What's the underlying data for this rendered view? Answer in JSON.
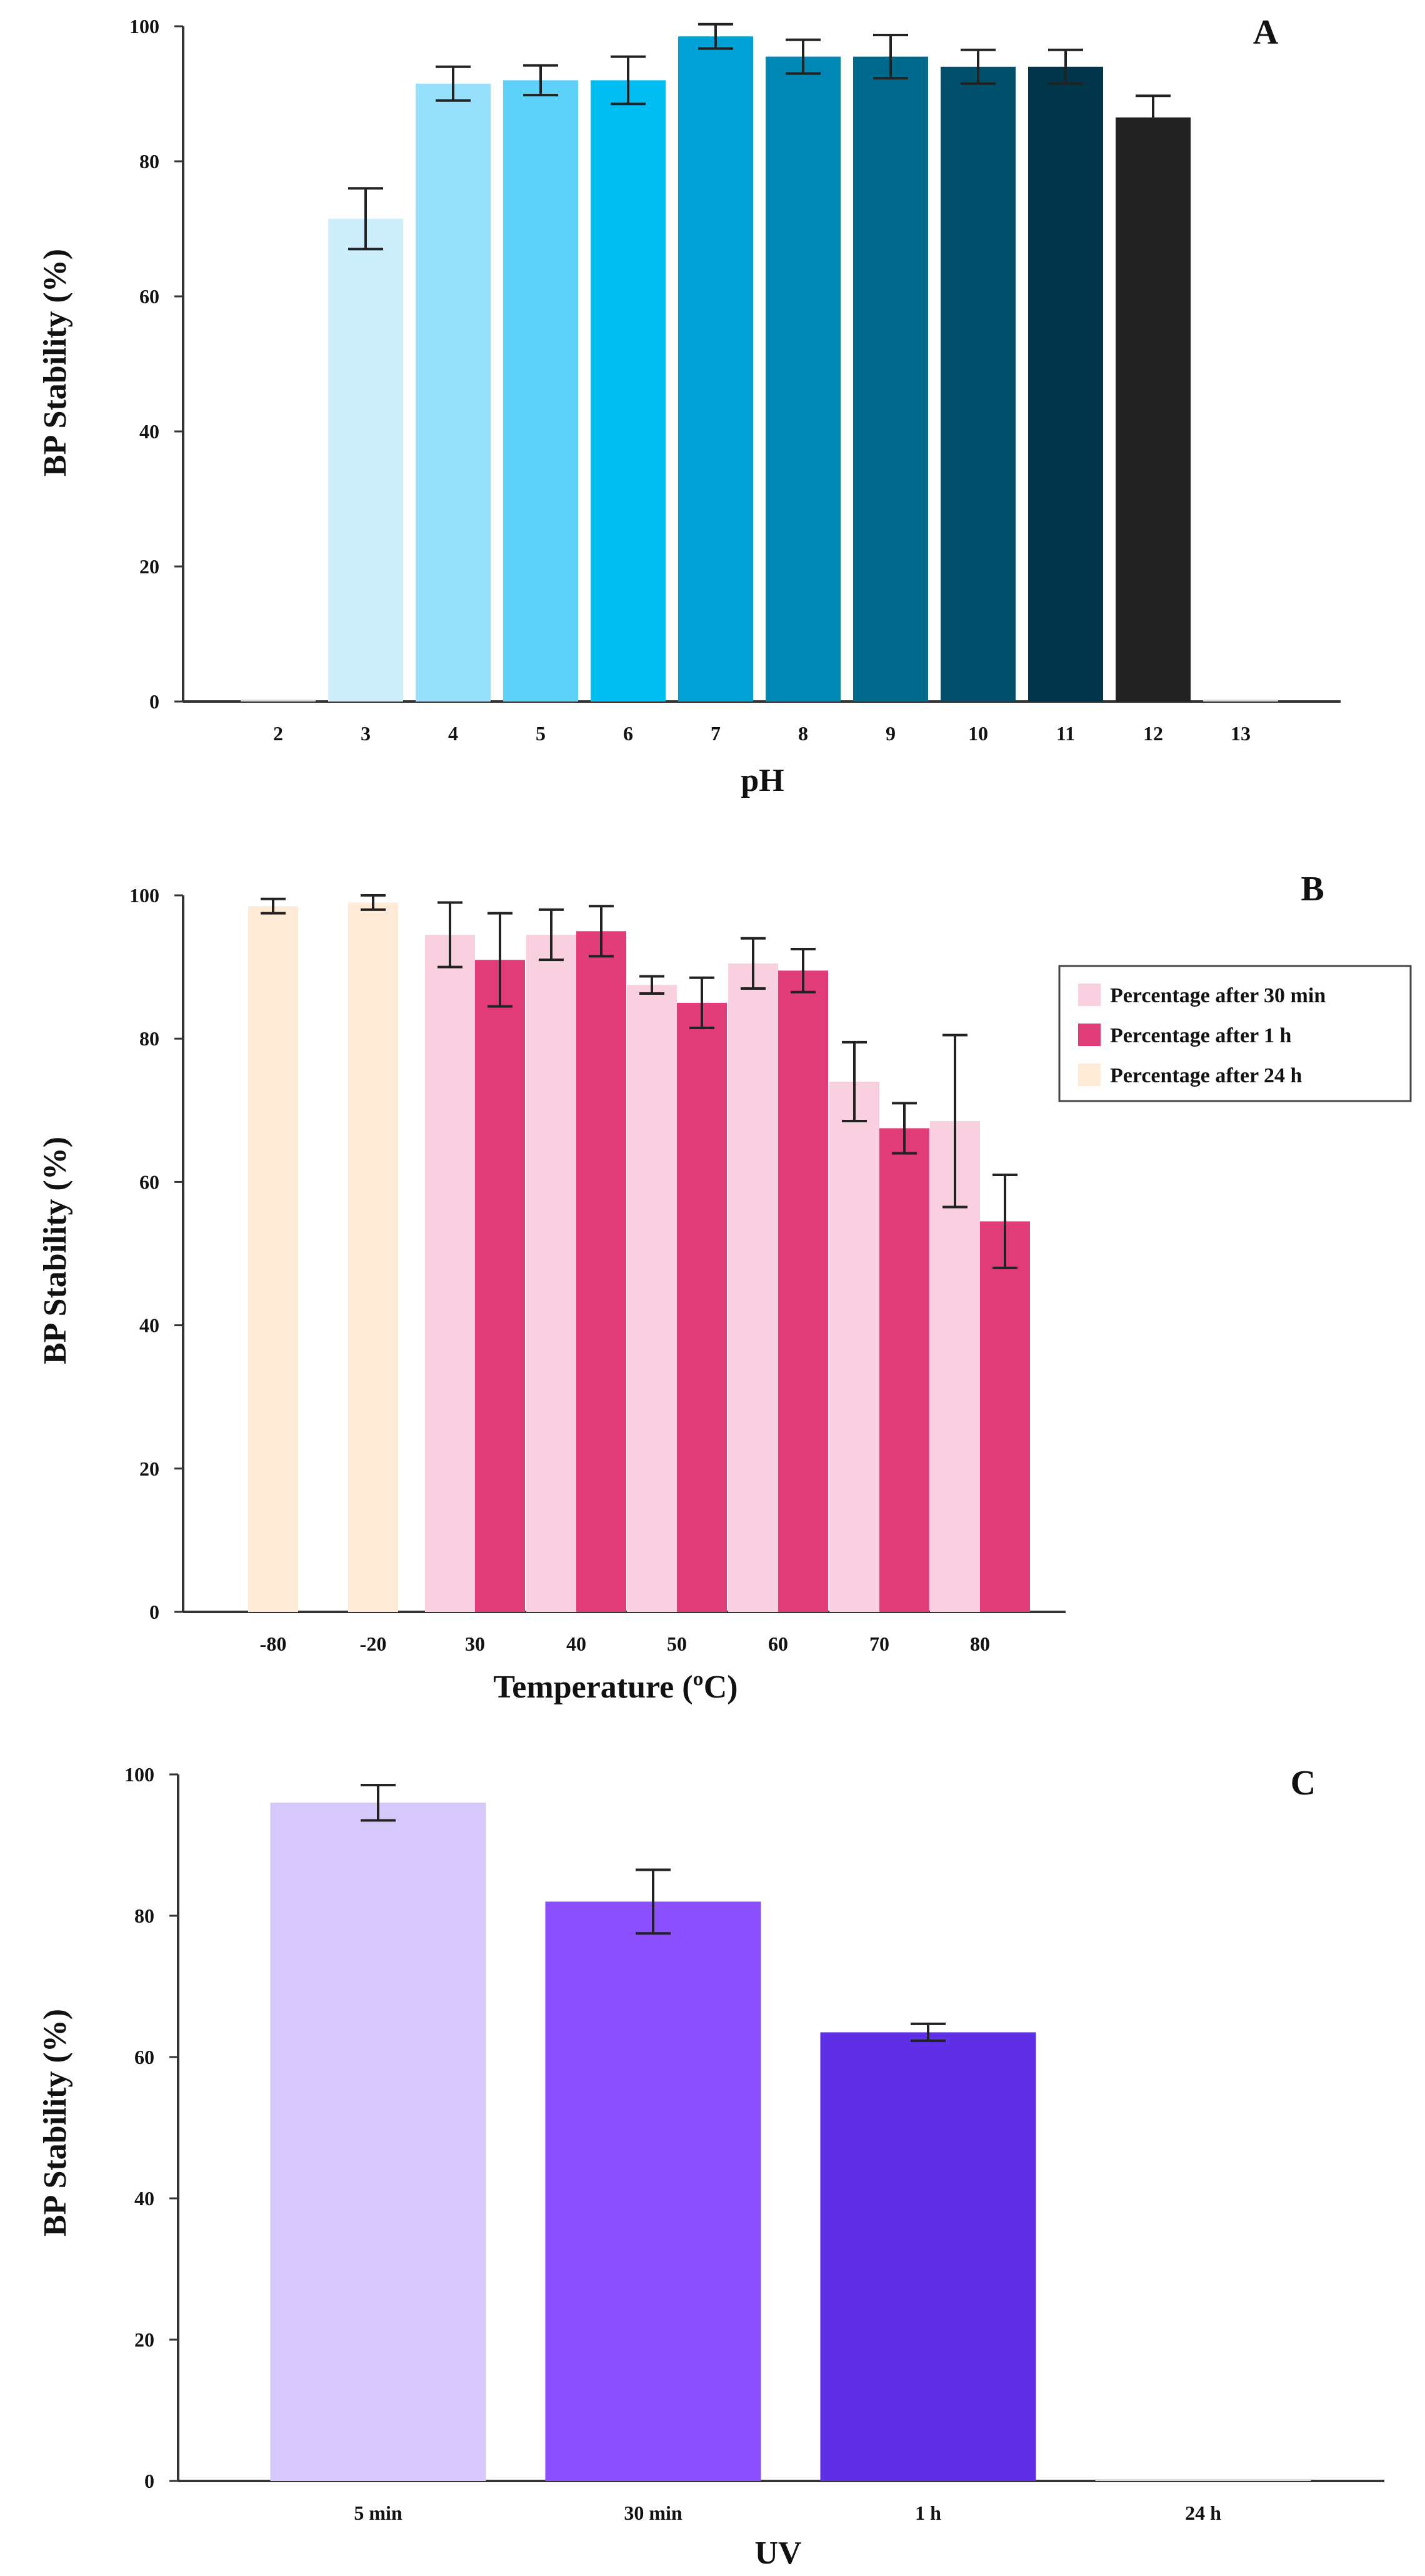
{
  "chart_data": [
    {
      "panel": "A",
      "type": "bar",
      "xlabel": "pH",
      "ylabel": "BP Stability (%)",
      "ylim": [
        0,
        100
      ],
      "yticks": [
        "0",
        "20",
        "40",
        "60",
        "80",
        "100"
      ],
      "categories": [
        "2",
        "3",
        "4",
        "5",
        "6",
        "7",
        "8",
        "9",
        "10",
        "11",
        "12",
        "13"
      ],
      "values": [
        0,
        71.5,
        91.5,
        92,
        92,
        98.5,
        95.5,
        95.5,
        94,
        94,
        86.5,
        0
      ],
      "errors": [
        0,
        4.5,
        2.5,
        2.2,
        3.5,
        1.8,
        2.5,
        3.2,
        2.5,
        2.5,
        3.2,
        0
      ],
      "colors": [
        "#e8f4fb",
        "#cdeefb",
        "#97e0fb",
        "#5dd1f8",
        "#00bdf2",
        "#00a1d6",
        "#0086b3",
        "#006a8d",
        "#004f6b",
        "#003549",
        "#222222",
        "#e8f4fb"
      ]
    },
    {
      "panel": "B",
      "type": "bar",
      "xlabel": "Temperature (ºC)",
      "ylabel": "BP Stability (%)",
      "ylim": [
        0,
        100
      ],
      "yticks": [
        "0",
        "20",
        "40",
        "60",
        "80",
        "100"
      ],
      "categories": [
        "-80",
        "-20",
        "30",
        "40",
        "50",
        "60",
        "70",
        "80"
      ],
      "series": [
        {
          "name": "Percentage after 30 min",
          "color": "#f8d0df",
          "values": [
            null,
            null,
            94.5,
            94.5,
            87.5,
            90.5,
            74,
            68.5
          ],
          "errors": [
            null,
            null,
            4.5,
            3.5,
            1.2,
            3.5,
            5.5,
            12
          ]
        },
        {
          "name": "Percentage after 1 h",
          "color": "#e23c78",
          "values": [
            null,
            null,
            91,
            95,
            85,
            89.5,
            67.5,
            54.5
          ],
          "errors": [
            null,
            null,
            6.5,
            3.5,
            3.5,
            3,
            3.5,
            6.5
          ]
        },
        {
          "name": "Percentage after 24 h",
          "color": "#feead6",
          "values": [
            98.5,
            99,
            null,
            null,
            null,
            null,
            null,
            null
          ],
          "errors": [
            1,
            1,
            null,
            null,
            null,
            null,
            null,
            null
          ]
        }
      ],
      "legend": "right"
    },
    {
      "panel": "C",
      "type": "bar",
      "xlabel": "UV",
      "ylabel": "BP Stability (%)",
      "ylim": [
        0,
        100
      ],
      "yticks": [
        "0",
        "20",
        "40",
        "60",
        "80",
        "100"
      ],
      "categories": [
        "5 min",
        "30 min",
        "1 h",
        "24 h"
      ],
      "values": [
        96,
        82,
        63.5,
        0
      ],
      "errors": [
        2.5,
        4.5,
        1.2,
        0
      ],
      "colors": [
        "#d6c8fb",
        "#8a4efc",
        "#5f2fe8",
        "#cccccc"
      ]
    }
  ]
}
